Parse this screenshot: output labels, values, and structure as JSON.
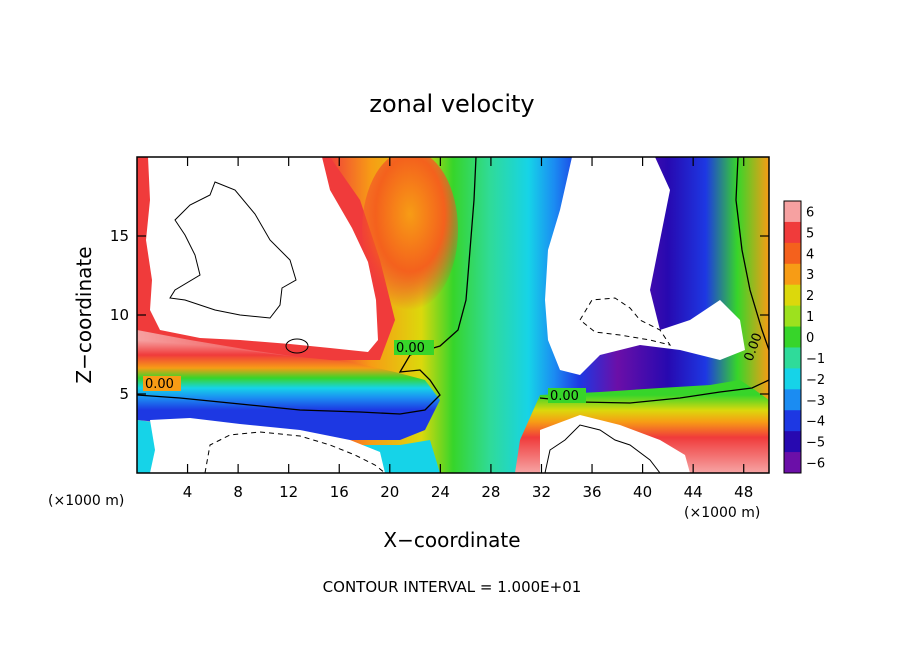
{
  "chart_data": {
    "type": "heatmap",
    "title": "zonal velocity",
    "xlabel": "X−coordinate",
    "ylabel": "Z−coordinate",
    "x_unit": "(×1000 m)",
    "z_unit": "(×1000 m)",
    "xlim": [
      0,
      50
    ],
    "ylim": [
      0,
      20
    ],
    "x_ticks": [
      4,
      8,
      12,
      16,
      20,
      24,
      28,
      32,
      36,
      40,
      44,
      48
    ],
    "y_ticks": [
      5,
      10,
      15
    ],
    "colorbar": {
      "levels": [
        "6",
        "5",
        "4",
        "3",
        "2",
        "1",
        "0",
        "−1",
        "−2",
        "−3",
        "−4",
        "−5",
        "−6"
      ],
      "colors": [
        "#f6a1a1",
        "#f03b3b",
        "#f4611d",
        "#f79c15",
        "#dcd80c",
        "#9de11e",
        "#37d52a",
        "#2fdb9a",
        "#16d3e8",
        "#1b8cf2",
        "#1d38e3",
        "#2709b0",
        "#6b0fa8"
      ]
    },
    "contour_labels": [
      "0.00",
      "0.00",
      "0.00",
      "0.00"
    ],
    "contour_interval_text": "CONTOUR INTERVAL = 1.000E+01",
    "field_description": [
      {
        "region": "x 0-11, z 10-20",
        "u": "> 6 (white)"
      },
      {
        "region": "x 15-24, z 11-20",
        "u": "3 to 6"
      },
      {
        "region": "x 24-32, z 0-20",
        "u": "-2 to 1"
      },
      {
        "region": "x 32-35, z 6-20",
        "u": "-3 to -6"
      },
      {
        "region": "x 34-46, z 6-20",
        "u": "< -6 (white)"
      },
      {
        "region": "x 46-50, z 0-20",
        "u": "-6 to 4"
      },
      {
        "region": "x 0-22, z 3-7",
        "u": "-5 to 3"
      },
      {
        "region": "x 33-50, z 0-4",
        "u": "2 to >6"
      }
    ]
  }
}
